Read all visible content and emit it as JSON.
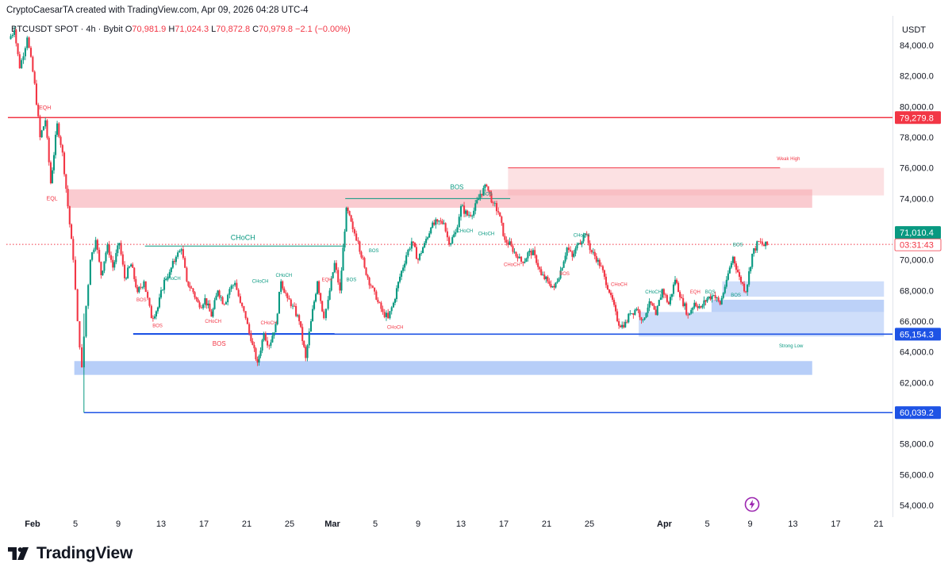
{
  "header": {
    "credit": "CryptoCaesarTA created with TradingView.com, Apr 09, 2026 04:28 UTC-4",
    "symbol": "BTCUSDT SPOT · 4h · Bybit",
    "open_label": "O",
    "open": "70,981.9",
    "high_label": "H",
    "high": "71,024.3",
    "low_label": "L",
    "low": "70,872.8",
    "close_label": "C",
    "close": "70,979.8",
    "change": "−2.1 (−0.00%)",
    "currency": "USDT"
  },
  "brand": {
    "name": "TradingView",
    "logo_icon": "tradingview-logo-icon",
    "flash_icon": "lightning-icon"
  },
  "colors": {
    "bull": "#089981",
    "bear": "#f23645",
    "resistance": "#f23645",
    "support": "#1e53e5",
    "supply_zone": "#f7a9b0",
    "demand_zone": "#9fbef5"
  },
  "chart_data": {
    "type": "candlestick",
    "interval": "4h",
    "ylim": [
      53000,
      85500
    ],
    "y_ticks": [
      54000,
      56000,
      58000,
      60000,
      62000,
      64000,
      66000,
      68000,
      70000,
      72000,
      74000,
      76000,
      78000,
      80000,
      82000,
      84000
    ],
    "y_tick_labels": [
      "54,000.0",
      "56,000.0",
      "58,000.0",
      "60,000.0",
      "62,000.0",
      "64,000.0",
      "66,000.0",
      "68,000.0",
      "70,000.0",
      "72,000.0",
      "74,000.0",
      "76,000.0",
      "78,000.0",
      "80,000.0",
      "82,000.0",
      "84,000.0"
    ],
    "xlim": [
      -1,
      79
    ],
    "x_ticks": [
      {
        "day": 0,
        "label": "Feb",
        "bold": true
      },
      {
        "day": 4,
        "label": "5"
      },
      {
        "day": 8,
        "label": "9"
      },
      {
        "day": 12,
        "label": "13"
      },
      {
        "day": 16,
        "label": "17"
      },
      {
        "day": 20,
        "label": "21"
      },
      {
        "day": 24,
        "label": "25"
      },
      {
        "day": 28,
        "label": "Mar",
        "bold": true
      },
      {
        "day": 32,
        "label": "5"
      },
      {
        "day": 36,
        "label": "9"
      },
      {
        "day": 40,
        "label": "13"
      },
      {
        "day": 44,
        "label": "17"
      },
      {
        "day": 48,
        "label": "21"
      },
      {
        "day": 52,
        "label": "25"
      },
      {
        "day": 59,
        "label": "Apr",
        "bold": true
      },
      {
        "day": 63,
        "label": "5"
      },
      {
        "day": 67,
        "label": "9"
      },
      {
        "day": 71,
        "label": "13"
      },
      {
        "day": 75,
        "label": "17"
      },
      {
        "day": 79,
        "label": "21"
      }
    ],
    "path": [
      [
        -2.2,
        84400
      ],
      [
        -1.7,
        85000
      ],
      [
        -1.2,
        82500
      ],
      [
        -0.5,
        84500
      ],
      [
        0.2,
        81500
      ],
      [
        0.7,
        78000
      ],
      [
        1.2,
        79100
      ],
      [
        1.7,
        75000
      ],
      [
        2.3,
        78900
      ],
      [
        2.8,
        77000
      ],
      [
        3.3,
        73500
      ],
      [
        3.8,
        70000
      ],
      [
        4.2,
        66000
      ],
      [
        4.6,
        63000
      ],
      [
        5.0,
        67000
      ],
      [
        5.4,
        70000
      ],
      [
        5.9,
        71300
      ],
      [
        6.4,
        69000
      ],
      [
        7.0,
        71000
      ],
      [
        7.5,
        69500
      ],
      [
        8.1,
        71100
      ],
      [
        8.6,
        68800
      ],
      [
        9.2,
        69700
      ],
      [
        9.8,
        67900
      ],
      [
        10.4,
        68600
      ],
      [
        11.1,
        66200
      ],
      [
        11.7,
        66900
      ],
      [
        12.3,
        68700
      ],
      [
        12.8,
        69200
      ],
      [
        13.4,
        70200
      ],
      [
        13.9,
        70700
      ],
      [
        14.4,
        68600
      ],
      [
        15.0,
        67900
      ],
      [
        15.6,
        66900
      ],
      [
        16.1,
        67500
      ],
      [
        16.7,
        66300
      ],
      [
        17.3,
        68000
      ],
      [
        17.9,
        67100
      ],
      [
        18.4,
        68100
      ],
      [
        18.9,
        68500
      ],
      [
        19.4,
        67200
      ],
      [
        19.9,
        66200
      ],
      [
        20.4,
        64700
      ],
      [
        21.0,
        63300
      ],
      [
        21.6,
        65200
      ],
      [
        22.1,
        64400
      ],
      [
        22.7,
        65800
      ],
      [
        23.2,
        68600
      ],
      [
        23.8,
        67500
      ],
      [
        24.3,
        67000
      ],
      [
        24.9,
        66000
      ],
      [
        25.5,
        63600
      ],
      [
        26.0,
        66000
      ],
      [
        26.6,
        68600
      ],
      [
        27.2,
        66200
      ],
      [
        27.6,
        67400
      ],
      [
        28.2,
        69800
      ],
      [
        28.7,
        68000
      ],
      [
        29.3,
        73400
      ],
      [
        29.9,
        72000
      ],
      [
        30.4,
        71200
      ],
      [
        31.0,
        69500
      ],
      [
        31.6,
        68300
      ],
      [
        32.1,
        67400
      ],
      [
        32.7,
        66600
      ],
      [
        33.2,
        66200
      ],
      [
        33.7,
        67200
      ],
      [
        34.3,
        68900
      ],
      [
        34.9,
        70300
      ],
      [
        35.4,
        71200
      ],
      [
        36.0,
        70000
      ],
      [
        36.6,
        71100
      ],
      [
        37.2,
        72100
      ],
      [
        37.8,
        72500
      ],
      [
        38.4,
        72400
      ],
      [
        38.9,
        71000
      ],
      [
        39.5,
        71800
      ],
      [
        40.0,
        73500
      ],
      [
        40.6,
        72900
      ],
      [
        41.2,
        73200
      ],
      [
        41.8,
        74300
      ],
      [
        42.4,
        74800
      ],
      [
        43.0,
        73700
      ],
      [
        43.5,
        73100
      ],
      [
        44.1,
        71300
      ],
      [
        44.7,
        70900
      ],
      [
        45.3,
        70100
      ],
      [
        45.8,
        69800
      ],
      [
        46.4,
        70600
      ],
      [
        46.9,
        70300
      ],
      [
        47.5,
        69000
      ],
      [
        48.1,
        68600
      ],
      [
        48.7,
        68200
      ],
      [
        49.3,
        69300
      ],
      [
        49.9,
        70800
      ],
      [
        50.4,
        70200
      ],
      [
        51.0,
        71100
      ],
      [
        51.6,
        71700
      ],
      [
        52.2,
        70500
      ],
      [
        52.8,
        70000
      ],
      [
        53.4,
        68900
      ],
      [
        54.0,
        67700
      ],
      [
        54.6,
        66000
      ],
      [
        55.2,
        65600
      ],
      [
        55.8,
        66500
      ],
      [
        56.4,
        66800
      ],
      [
        57.0,
        66100
      ],
      [
        57.6,
        67300
      ],
      [
        58.2,
        66400
      ],
      [
        58.8,
        68100
      ],
      [
        59.4,
        67100
      ],
      [
        60.0,
        68700
      ],
      [
        60.6,
        67500
      ],
      [
        61.2,
        66400
      ],
      [
        61.8,
        67200
      ],
      [
        62.4,
        66900
      ],
      [
        63.0,
        67500
      ],
      [
        63.6,
        67700
      ],
      [
        64.2,
        67100
      ],
      [
        64.8,
        68700
      ],
      [
        65.4,
        70200
      ],
      [
        66.0,
        68900
      ],
      [
        66.6,
        67900
      ],
      [
        67.2,
        70400
      ],
      [
        67.8,
        71200
      ],
      [
        68.3,
        70900
      ],
      [
        68.6,
        70980
      ]
    ],
    "levels": [
      {
        "id": "resistance",
        "price": 79279.8,
        "from_day": -2.3,
        "label": "79,279.8",
        "color": "#f23645"
      },
      {
        "id": "support-strong",
        "price": 65154.3,
        "from_day": 9.4,
        "label": "65,154.3",
        "color": "#1e53e5"
      },
      {
        "id": "support-low",
        "price": 60039.2,
        "from_day": 4.8,
        "label": "60,039.2",
        "color": "#1e53e5"
      }
    ],
    "last_price": {
      "price": 71010.4,
      "label": "71,010.4",
      "countdown": "03:31:43"
    },
    "zones": [
      {
        "id": "supply-zone",
        "kind": "supply",
        "from_day": 3.2,
        "to_day": 72.8,
        "low": 73400,
        "high": 74600,
        "opacity": 0.6
      },
      {
        "id": "weak-high-zone",
        "kind": "supply",
        "from_day": 44.4,
        "to_day": 79.5,
        "low": 74200,
        "high": 76000,
        "opacity": 0.35
      },
      {
        "id": "demand-zone-upper",
        "kind": "demand",
        "from_day": 64.4,
        "to_day": 79.5,
        "low": 67600,
        "high": 68600,
        "opacity": 0.5
      },
      {
        "id": "demand-zone-mid",
        "kind": "demand",
        "from_day": 63.4,
        "to_day": 79.5,
        "low": 66600,
        "high": 67400,
        "opacity": 0.7
      },
      {
        "id": "demand-zone-lower",
        "kind": "demand",
        "from_day": 56.6,
        "to_day": 79.5,
        "low": 65000,
        "high": 66600,
        "opacity": 0.5
      },
      {
        "id": "demand-zone-main",
        "kind": "demand",
        "from_day": 3.9,
        "to_day": 72.8,
        "low": 62500,
        "high": 63400,
        "opacity": 0.75
      }
    ],
    "structure_lines": [
      {
        "id": "choch-line-1",
        "from_day": 10.5,
        "to_day": 29.2,
        "price": 70900,
        "color": "#089981",
        "dashed": false
      },
      {
        "id": "bos-line-top",
        "from_day": 29.2,
        "to_day": 44.6,
        "price": 74000,
        "color": "#089981",
        "dashed": false
      },
      {
        "id": "weak-high-line",
        "from_day": 44.4,
        "to_day": 69.8,
        "price": 76000,
        "color": "#f23645",
        "dashed": false
      },
      {
        "id": "bos-line-low",
        "from_day": 9.4,
        "to_day": 28.2,
        "price": 65200,
        "color": "#1e53e5",
        "dashed": false
      }
    ],
    "annotations": [
      {
        "text": "EQH",
        "day": 0.6,
        "price": 79800,
        "color": "#f23645",
        "size": 7
      },
      {
        "text": "EQL",
        "day": 1.3,
        "price": 73900,
        "color": "#f23645",
        "size": 7
      },
      {
        "text": "CHoCH",
        "day": 18.5,
        "price": 71300,
        "color": "#089981",
        "size": 9
      },
      {
        "text": "BOS",
        "day": 39.0,
        "price": 74600,
        "color": "#089981",
        "size": 8
      },
      {
        "text": "BOS",
        "day": 42.0,
        "price": 74200,
        "color": "#089981",
        "size": 6
      },
      {
        "text": "BOS",
        "day": 16.8,
        "price": 64400,
        "color": "#f23645",
        "size": 8
      },
      {
        "text": "CHoCH",
        "day": 12.3,
        "price": 68700,
        "color": "#089981",
        "size": 6
      },
      {
        "text": "CHoCH",
        "day": 20.5,
        "price": 68500,
        "color": "#089981",
        "size": 6
      },
      {
        "text": "CHoCH",
        "day": 22.7,
        "price": 68900,
        "color": "#089981",
        "size": 6
      },
      {
        "text": "CHoCH",
        "day": 39.6,
        "price": 71800,
        "color": "#089981",
        "size": 6
      },
      {
        "text": "CHoCH",
        "day": 41.6,
        "price": 71600,
        "color": "#089981",
        "size": 6
      },
      {
        "text": "CHoCH",
        "day": 50.5,
        "price": 71500,
        "color": "#089981",
        "size": 6
      },
      {
        "text": "CHoCH",
        "day": 57.2,
        "price": 67800,
        "color": "#089981",
        "size": 6
      },
      {
        "text": "BOS",
        "day": 31.4,
        "price": 70500,
        "color": "#089981",
        "size": 6
      },
      {
        "text": "BOS",
        "day": 29.3,
        "price": 68600,
        "color": "#089981",
        "size": 6
      },
      {
        "text": "BOS",
        "day": 65.4,
        "price": 70900,
        "color": "#089981",
        "size": 6
      },
      {
        "text": "BOS",
        "day": 62.8,
        "price": 67800,
        "color": "#089981",
        "size": 6
      },
      {
        "text": "BOS",
        "day": 65.2,
        "price": 67600,
        "color": "#089981",
        "size": 6
      },
      {
        "text": "BOS",
        "day": 9.7,
        "price": 67300,
        "color": "#f23645",
        "size": 6
      },
      {
        "text": "BOS",
        "day": 11.2,
        "price": 65600,
        "color": "#f23645",
        "size": 6
      },
      {
        "text": "BOS",
        "day": 49.2,
        "price": 69000,
        "color": "#f23645",
        "size": 6
      },
      {
        "text": "CHoCH",
        "day": 16.1,
        "price": 65900,
        "color": "#f23645",
        "size": 6
      },
      {
        "text": "CHoCH",
        "day": 21.3,
        "price": 65800,
        "color": "#f23645",
        "size": 6
      },
      {
        "text": "CHoCH",
        "day": 33.1,
        "price": 65500,
        "color": "#f23645",
        "size": 6
      },
      {
        "text": "CHoCH",
        "day": 44.0,
        "price": 69600,
        "color": "#f23645",
        "size": 6
      },
      {
        "text": "CHoCH",
        "day": 54.0,
        "price": 68300,
        "color": "#f23645",
        "size": 6
      },
      {
        "text": "EQH",
        "day": 27.0,
        "price": 68600,
        "color": "#f23645",
        "size": 6
      },
      {
        "text": "EQH",
        "day": 61.4,
        "price": 67800,
        "color": "#f23645",
        "size": 6
      },
      {
        "text": "Weak High",
        "day": 69.5,
        "price": 76500,
        "color": "#f23645",
        "size": 6
      },
      {
        "text": "Strong Low",
        "day": 69.7,
        "price": 64300,
        "color": "#089981",
        "size": 6
      }
    ]
  }
}
